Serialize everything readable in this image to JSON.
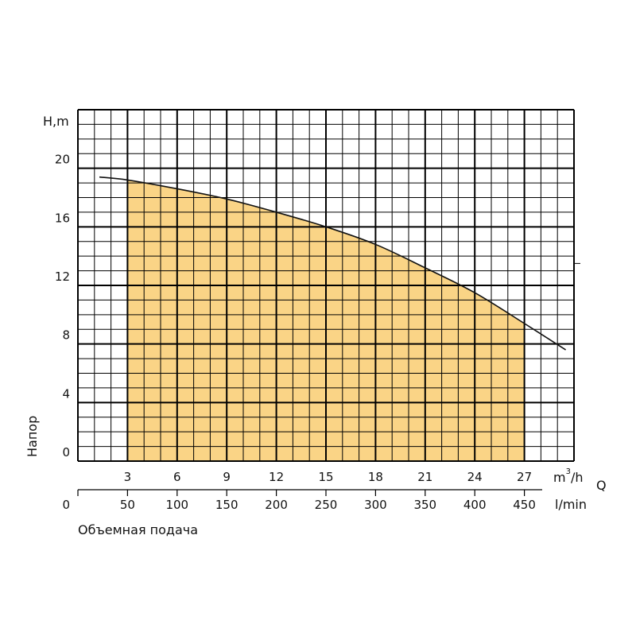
{
  "chart_data": {
    "type": "area",
    "ylabel_unit": "H,m",
    "ylabel": "Напор",
    "xlabel": "Объемная подача",
    "q_label": "Q",
    "x_unit_m3h": "m³/h",
    "x_unit_m3h_base": "m",
    "x_unit_m3h_sup": "3",
    "x_unit_m3h_tail": "/h",
    "x_unit_lmin": "l/min",
    "xlim_m3h": [
      0,
      30
    ],
    "ylim": [
      0,
      24
    ],
    "y_ticks": [
      "0",
      "4",
      "8",
      "12",
      "16",
      "20"
    ],
    "y_tick_values": [
      0,
      4,
      8,
      12,
      16,
      20
    ],
    "x_ticks_m3h": [
      "3",
      "6",
      "9",
      "12",
      "15",
      "18",
      "21",
      "24",
      "27"
    ],
    "x_tick_values_m3h": [
      3,
      6,
      9,
      12,
      15,
      18,
      21,
      24,
      27
    ],
    "x_ticks_lmin": [
      "0",
      "50",
      "100",
      "150",
      "200",
      "250",
      "300",
      "350",
      "400",
      "450"
    ],
    "x_tick_values_lmin": [
      0,
      50,
      100,
      150,
      200,
      250,
      300,
      350,
      400,
      450
    ],
    "grid": true,
    "series": [
      {
        "x": [
          1.3,
          3,
          6,
          9,
          12,
          15,
          18,
          21,
          24,
          27,
          29.5
        ],
        "y": [
          19.4,
          19.2,
          18.6,
          17.9,
          17.0,
          16.0,
          14.8,
          13.2,
          11.5,
          9.4,
          7.6
        ]
      }
    ],
    "operating_range_m3h": [
      3,
      27
    ],
    "fill_color": "#fad486",
    "line_color": "#111111"
  }
}
